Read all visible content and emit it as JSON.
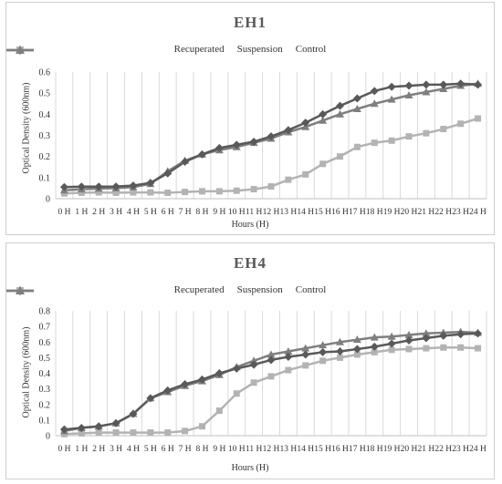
{
  "chart_data": [
    {
      "type": "line",
      "title": "EH1",
      "xlabel": "Hours (H)",
      "ylabel": "Optical Density (600nm)",
      "ylim": [
        0,
        0.6
      ],
      "yticks": [
        "0",
        "0.1",
        "0.2",
        "0.3",
        "0.4",
        "0.5",
        "0.6"
      ],
      "legend_position": "top-center",
      "grid": "vertical",
      "categories": [
        "0 H",
        "1 H",
        "2 H",
        "3 H",
        "4 H",
        "5 H",
        "6 H",
        "7 H",
        "8 H",
        "9 H",
        "10 H",
        "11 H",
        "12 H",
        "13 H",
        "14 H",
        "15 H",
        "16 H",
        "17 H",
        "18 H",
        "19 H",
        "20 H",
        "21 H",
        "22 H",
        "23 H",
        "24 H"
      ],
      "series": [
        {
          "name": "Recuperated",
          "marker": "diamond",
          "color": "#595959",
          "values": [
            0.055,
            0.057,
            0.057,
            0.058,
            0.062,
            0.075,
            0.12,
            0.175,
            0.21,
            0.24,
            0.255,
            0.27,
            0.295,
            0.325,
            0.36,
            0.4,
            0.44,
            0.475,
            0.51,
            0.53,
            0.535,
            0.54,
            0.54,
            0.545,
            0.54
          ]
        },
        {
          "name": "Suspension",
          "marker": "square",
          "color": "#b3b3b3",
          "values": [
            0.025,
            0.028,
            0.03,
            0.028,
            0.03,
            0.03,
            0.028,
            0.032,
            0.035,
            0.035,
            0.038,
            0.045,
            0.058,
            0.09,
            0.115,
            0.165,
            0.2,
            0.245,
            0.265,
            0.275,
            0.295,
            0.31,
            0.33,
            0.355,
            0.38
          ]
        },
        {
          "name": "Control",
          "marker": "triangle",
          "color": "#7f7f7f",
          "values": [
            0.04,
            0.045,
            0.048,
            0.05,
            0.055,
            0.07,
            0.13,
            0.18,
            0.21,
            0.23,
            0.245,
            0.265,
            0.285,
            0.315,
            0.34,
            0.37,
            0.4,
            0.425,
            0.45,
            0.47,
            0.49,
            0.505,
            0.52,
            0.535,
            0.545
          ]
        }
      ]
    },
    {
      "type": "line",
      "title": "EH4",
      "xlabel": "Hours (H)",
      "ylabel": "Optical Density (600nm)",
      "ylim": [
        0,
        0.8
      ],
      "yticks": [
        "0",
        "0.1",
        "0.2",
        "0.3",
        "0.4",
        "0.5",
        "0.6",
        "0.7",
        "0.8"
      ],
      "legend_position": "top-center",
      "grid": "vertical",
      "categories": [
        "0 H",
        "1 H",
        "2 H",
        "3 H",
        "4 H",
        "5 H",
        "6 H",
        "7 H",
        "8 H",
        "9 H",
        "10 H",
        "11 H",
        "12 H",
        "13 H",
        "14 H",
        "15 H",
        "16 H",
        "17 H",
        "18 H",
        "19 H",
        "20 H",
        "21 H",
        "22 H",
        "23 H",
        "24 H"
      ],
      "series": [
        {
          "name": "Recuperated",
          "marker": "diamond",
          "color": "#595959",
          "values": [
            0.04,
            0.05,
            0.06,
            0.08,
            0.14,
            0.24,
            0.29,
            0.33,
            0.36,
            0.4,
            0.43,
            0.455,
            0.485,
            0.505,
            0.52,
            0.535,
            0.54,
            0.555,
            0.57,
            0.59,
            0.61,
            0.625,
            0.64,
            0.65,
            0.655
          ]
        },
        {
          "name": "Suspension",
          "marker": "square",
          "color": "#b3b3b3",
          "values": [
            0.01,
            0.015,
            0.02,
            0.02,
            0.02,
            0.02,
            0.02,
            0.03,
            0.06,
            0.16,
            0.27,
            0.34,
            0.38,
            0.42,
            0.45,
            0.48,
            0.5,
            0.52,
            0.535,
            0.55,
            0.555,
            0.56,
            0.565,
            0.565,
            0.56
          ]
        },
        {
          "name": "Control",
          "marker": "triangle",
          "color": "#7f7f7f",
          "values": [
            0.03,
            0.05,
            0.06,
            0.08,
            0.14,
            0.24,
            0.28,
            0.32,
            0.35,
            0.39,
            0.44,
            0.48,
            0.52,
            0.54,
            0.56,
            0.58,
            0.6,
            0.615,
            0.63,
            0.635,
            0.645,
            0.655,
            0.66,
            0.665,
            0.66
          ]
        }
      ]
    }
  ]
}
